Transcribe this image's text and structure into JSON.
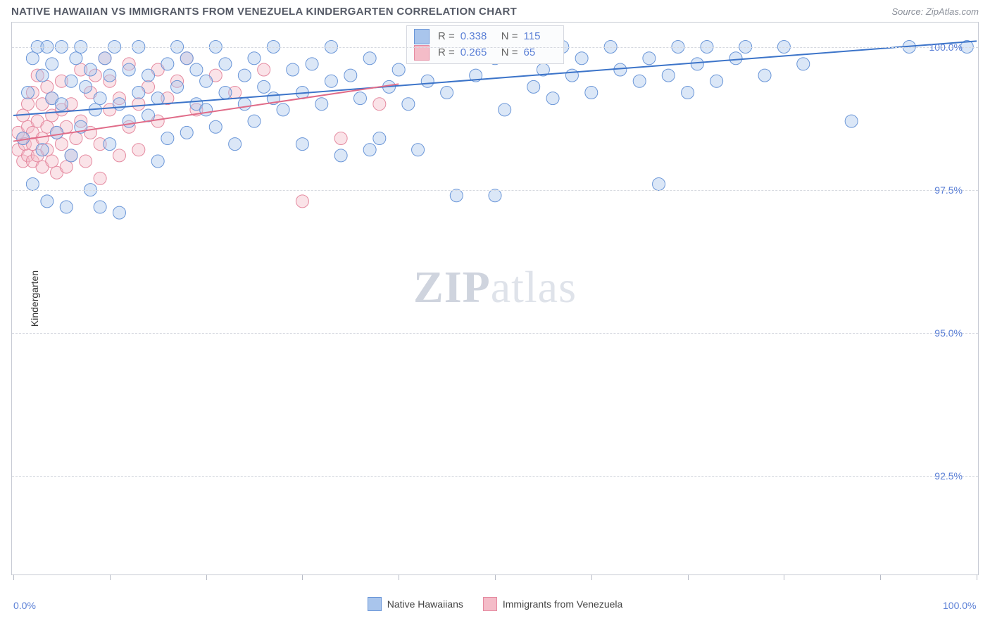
{
  "title": "NATIVE HAWAIIAN VS IMMIGRANTS FROM VENEZUELA KINDERGARTEN CORRELATION CHART",
  "source": "Source: ZipAtlas.com",
  "watermark": {
    "bold": "ZIP",
    "rest": "atlas"
  },
  "chart": {
    "type": "scatter",
    "ylabel": "Kindergarten",
    "background_color": "#ffffff",
    "grid_color": "#d6d9e0",
    "axis_color": "#c7cbd4",
    "xlim": [
      0,
      100
    ],
    "ylim": [
      90.8,
      100.4
    ],
    "yticks": [
      {
        "v": 92.5,
        "label": "92.5%"
      },
      {
        "v": 95.0,
        "label": "95.0%"
      },
      {
        "v": 97.5,
        "label": "97.5%"
      },
      {
        "v": 100.0,
        "label": "100.0%"
      }
    ],
    "xtick_positions": [
      0,
      10,
      20,
      30,
      40,
      50,
      60,
      70,
      80,
      90,
      100
    ],
    "xaxis_labels": [
      {
        "v": 0,
        "label": "0.0%"
      },
      {
        "v": 100,
        "label": "100.0%"
      }
    ],
    "marker_radius": 9,
    "marker_opacity": 0.42,
    "line_width": 2,
    "label_fontsize": 14,
    "tick_color": "#5a7fd6"
  },
  "series": [
    {
      "name": "Native Hawaiians",
      "fill": "#a9c5ec",
      "stroke": "#6a96d8",
      "line_color": "#3c74c9",
      "r": 0.338,
      "n": 115,
      "regression": {
        "x1": 0,
        "y1": 98.8,
        "x2": 100,
        "y2": 100.1
      },
      "points": [
        [
          1,
          98.4
        ],
        [
          1.5,
          99.2
        ],
        [
          2,
          99.8
        ],
        [
          2,
          97.6
        ],
        [
          2.5,
          100.0
        ],
        [
          3,
          98.2
        ],
        [
          3,
          99.5
        ],
        [
          3.5,
          100.0
        ],
        [
          3.5,
          97.3
        ],
        [
          4,
          99.1
        ],
        [
          4,
          99.7
        ],
        [
          4.5,
          98.5
        ],
        [
          5,
          99.0
        ],
        [
          5,
          100.0
        ],
        [
          5.5,
          97.2
        ],
        [
          6,
          99.4
        ],
        [
          6,
          98.1
        ],
        [
          6.5,
          99.8
        ],
        [
          7,
          100.0
        ],
        [
          7,
          98.6
        ],
        [
          7.5,
          99.3
        ],
        [
          8,
          97.5
        ],
        [
          8,
          99.6
        ],
        [
          8.5,
          98.9
        ],
        [
          9,
          99.1
        ],
        [
          9,
          97.2
        ],
        [
          9.5,
          99.8
        ],
        [
          10,
          99.5
        ],
        [
          10,
          98.3
        ],
        [
          10.5,
          100.0
        ],
        [
          11,
          99.0
        ],
        [
          11,
          97.1
        ],
        [
          12,
          99.6
        ],
        [
          12,
          98.7
        ],
        [
          13,
          99.2
        ],
        [
          13,
          100.0
        ],
        [
          14,
          98.8
        ],
        [
          14,
          99.5
        ],
        [
          15,
          99.1
        ],
        [
          15,
          98.0
        ],
        [
          16,
          99.7
        ],
        [
          16,
          98.4
        ],
        [
          17,
          99.3
        ],
        [
          17,
          100.0
        ],
        [
          18,
          99.8
        ],
        [
          18,
          98.5
        ],
        [
          19,
          99.0
        ],
        [
          19,
          99.6
        ],
        [
          20,
          98.9
        ],
        [
          20,
          99.4
        ],
        [
          21,
          100.0
        ],
        [
          21,
          98.6
        ],
        [
          22,
          99.2
        ],
        [
          22,
          99.7
        ],
        [
          23,
          98.3
        ],
        [
          24,
          99.5
        ],
        [
          24,
          99.0
        ],
        [
          25,
          99.8
        ],
        [
          25,
          98.7
        ],
        [
          26,
          99.3
        ],
        [
          27,
          100.0
        ],
        [
          27,
          99.1
        ],
        [
          28,
          98.9
        ],
        [
          29,
          99.6
        ],
        [
          30,
          99.2
        ],
        [
          30,
          98.3
        ],
        [
          31,
          99.7
        ],
        [
          32,
          99.0
        ],
        [
          33,
          100.0
        ],
        [
          33,
          99.4
        ],
        [
          34,
          98.1
        ],
        [
          35,
          99.5
        ],
        [
          36,
          99.1
        ],
        [
          37,
          98.2
        ],
        [
          37,
          99.8
        ],
        [
          38,
          98.4
        ],
        [
          39,
          99.3
        ],
        [
          40,
          99.6
        ],
        [
          41,
          99.0
        ],
        [
          42,
          98.2
        ],
        [
          43,
          99.4
        ],
        [
          45,
          99.2
        ],
        [
          46,
          97.4
        ],
        [
          48,
          100.0
        ],
        [
          48,
          99.5
        ],
        [
          50,
          99.8
        ],
        [
          51,
          98.9
        ],
        [
          53,
          100.0
        ],
        [
          54,
          99.3
        ],
        [
          55,
          99.6
        ],
        [
          56,
          99.1
        ],
        [
          57,
          100.0
        ],
        [
          58,
          99.5
        ],
        [
          59,
          99.8
        ],
        [
          60,
          99.2
        ],
        [
          62,
          100.0
        ],
        [
          63,
          99.6
        ],
        [
          65,
          99.4
        ],
        [
          66,
          99.8
        ],
        [
          67,
          97.6
        ],
        [
          68,
          99.5
        ],
        [
          69,
          100.0
        ],
        [
          70,
          99.2
        ],
        [
          71,
          99.7
        ],
        [
          72,
          100.0
        ],
        [
          73,
          99.4
        ],
        [
          75,
          99.8
        ],
        [
          76,
          100.0
        ],
        [
          78,
          99.5
        ],
        [
          80,
          100.0
        ],
        [
          82,
          99.7
        ],
        [
          87,
          98.7
        ],
        [
          93,
          100.0
        ],
        [
          99,
          100.0
        ],
        [
          50,
          97.4
        ]
      ]
    },
    {
      "name": "Immigrants from Venezuela",
      "fill": "#f4bcc8",
      "stroke": "#e58aa0",
      "line_color": "#e06b88",
      "r": 0.265,
      "n": 65,
      "regression": {
        "x1": 0,
        "y1": 98.35,
        "x2": 40,
        "y2": 99.35
      },
      "points": [
        [
          0.5,
          98.2
        ],
        [
          0.5,
          98.5
        ],
        [
          1,
          98.0
        ],
        [
          1,
          98.4
        ],
        [
          1,
          98.8
        ],
        [
          1.2,
          98.3
        ],
        [
          1.5,
          98.1
        ],
        [
          1.5,
          98.6
        ],
        [
          1.5,
          99.0
        ],
        [
          2,
          98.0
        ],
        [
          2,
          98.5
        ],
        [
          2,
          99.2
        ],
        [
          2,
          98.3
        ],
        [
          2.5,
          98.7
        ],
        [
          2.5,
          98.1
        ],
        [
          2.5,
          99.5
        ],
        [
          3,
          98.4
        ],
        [
          3,
          97.9
        ],
        [
          3,
          99.0
        ],
        [
          3.5,
          98.6
        ],
        [
          3.5,
          98.2
        ],
        [
          3.5,
          99.3
        ],
        [
          4,
          98.0
        ],
        [
          4,
          98.8
        ],
        [
          4,
          99.1
        ],
        [
          4.5,
          98.5
        ],
        [
          4.5,
          97.8
        ],
        [
          5,
          98.3
        ],
        [
          5,
          98.9
        ],
        [
          5,
          99.4
        ],
        [
          5.5,
          98.6
        ],
        [
          5.5,
          97.9
        ],
        [
          6,
          98.1
        ],
        [
          6,
          99.0
        ],
        [
          6.5,
          98.4
        ],
        [
          7,
          98.7
        ],
        [
          7,
          99.6
        ],
        [
          7.5,
          98.0
        ],
        [
          8,
          99.2
        ],
        [
          8,
          98.5
        ],
        [
          8.5,
          99.5
        ],
        [
          9,
          98.3
        ],
        [
          9,
          97.7
        ],
        [
          9.5,
          99.8
        ],
        [
          10,
          98.9
        ],
        [
          10,
          99.4
        ],
        [
          11,
          98.1
        ],
        [
          11,
          99.1
        ],
        [
          12,
          98.6
        ],
        [
          12,
          99.7
        ],
        [
          13,
          99.0
        ],
        [
          13,
          98.2
        ],
        [
          14,
          99.3
        ],
        [
          15,
          99.6
        ],
        [
          15,
          98.7
        ],
        [
          16,
          99.1
        ],
        [
          17,
          99.4
        ],
        [
          18,
          99.8
        ],
        [
          19,
          98.9
        ],
        [
          21,
          99.5
        ],
        [
          23,
          99.2
        ],
        [
          26,
          99.6
        ],
        [
          30,
          97.3
        ],
        [
          34,
          98.4
        ],
        [
          38,
          99.0
        ]
      ]
    }
  ],
  "legend_box": {
    "rows": [
      {
        "r_label": "R =",
        "r_val": "0.338",
        "n_label": "N =",
        "n_val": "115"
      },
      {
        "r_label": "R =",
        "r_val": "0.265",
        "n_label": "N =",
        "n_val": " 65"
      }
    ]
  },
  "legend_bottom": [
    {
      "label": "Native Hawaiians"
    },
    {
      "label": "Immigrants from Venezuela"
    }
  ]
}
